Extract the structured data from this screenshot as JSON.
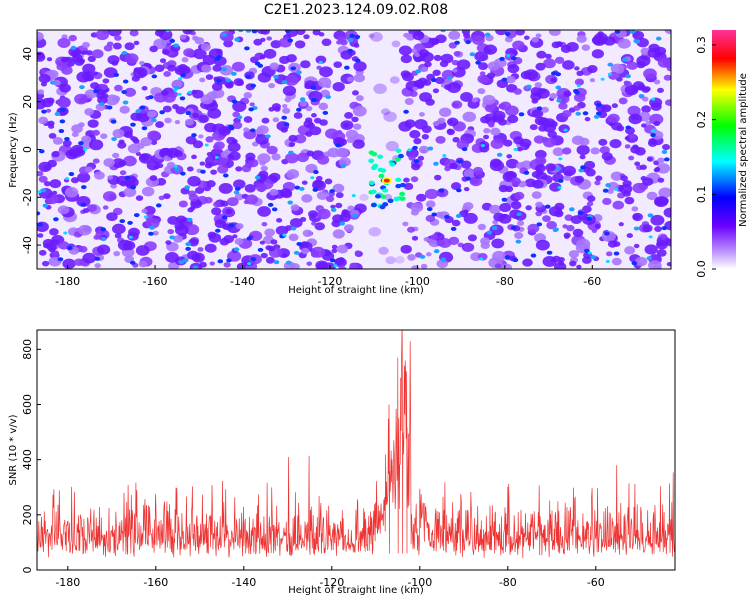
{
  "title": "C2E1.2023.124.09.02.R08",
  "chart_data": [
    {
      "type": "heatmap",
      "xlabel": "Height of straight line (km)",
      "ylabel": "Frequency (Hz)",
      "xlim": [
        -187,
        -42
      ],
      "ylim": [
        -50,
        50
      ],
      "x_ticks": [
        -180,
        -160,
        -140,
        -120,
        -100,
        -80,
        -60
      ],
      "y_ticks": [
        -40,
        -20,
        0,
        20,
        40
      ],
      "colorbar": {
        "label": "Normalized spectral amplitude",
        "range": [
          0,
          0.32
        ],
        "ticks": [
          0.0,
          0.1,
          0.2,
          0.3
        ]
      },
      "features": {
        "quiet_band_x": [
          -113,
          -103
        ],
        "peak": {
          "x": -107,
          "y": -13,
          "value": 0.32
        },
        "background_level": "0.04-0.10"
      }
    },
    {
      "type": "line",
      "xlabel": "Height of straight line (km)",
      "ylabel": "SNR (10 * v/v)",
      "xlim": [
        -187,
        -42
      ],
      "ylim": [
        0,
        870
      ],
      "x_ticks": [
        -180,
        -160,
        -140,
        -120,
        -100,
        -80,
        -60
      ],
      "y_ticks": [
        0,
        200,
        400,
        600,
        800
      ],
      "series": [
        {
          "values_summary": {
            "baseline_min": 40,
            "baseline_max": 250,
            "typical_spike": 320,
            "max_spike": 440
          },
          "peak": {
            "x": -104,
            "y": 860
          },
          "secondary_peaks": [
            {
              "x": -105,
              "y": 770
            },
            {
              "x": -103,
              "y": 720
            },
            {
              "x": -107,
              "y": 600
            }
          ],
          "color": "#ee3333"
        }
      ]
    }
  ]
}
